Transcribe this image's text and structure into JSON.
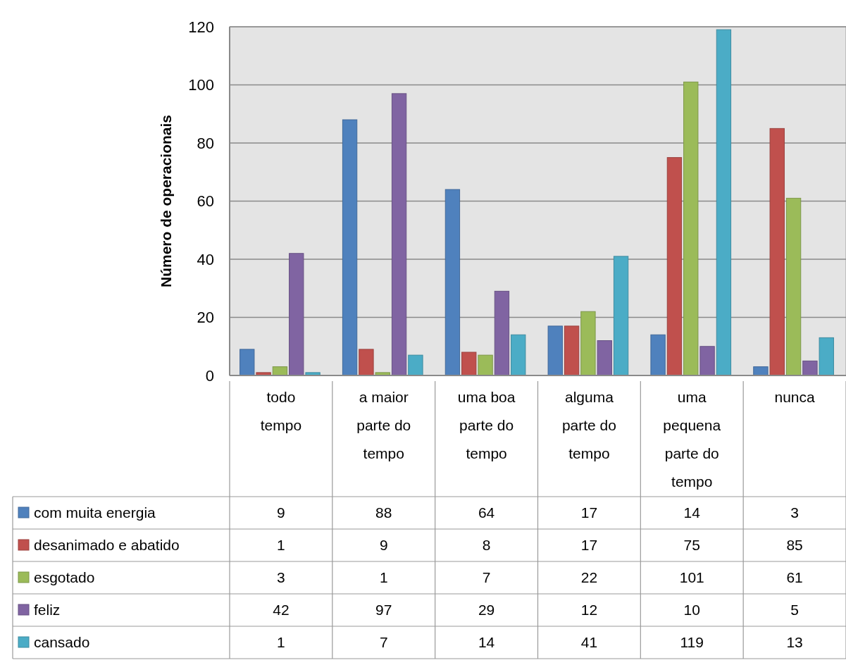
{
  "chart_data": {
    "type": "bar",
    "ylabel": "Número de operacionais",
    "categories": [
      "todo tempo",
      "a maior parte do tempo",
      "uma boa parte do tempo",
      "alguma parte do tempo",
      "uma pequena parte do tempo",
      "nunca"
    ],
    "series": [
      {
        "name": "com muita energia",
        "color": "#4f81bd",
        "values": [
          9,
          88,
          64,
          17,
          14,
          3
        ]
      },
      {
        "name": "desanimado e abatido",
        "color": "#c0504d",
        "values": [
          1,
          9,
          8,
          17,
          75,
          85
        ]
      },
      {
        "name": "esgotado",
        "color": "#9bbb59",
        "values": [
          3,
          1,
          7,
          22,
          101,
          61
        ]
      },
      {
        "name": "feliz",
        "color": "#8064a2",
        "values": [
          42,
          97,
          29,
          12,
          10,
          5
        ]
      },
      {
        "name": "cansado",
        "color": "#4bacc6",
        "values": [
          1,
          7,
          14,
          41,
          119,
          13
        ]
      }
    ],
    "ylim": [
      0,
      120
    ],
    "yticks": [
      0,
      20,
      40,
      60,
      80,
      100,
      120
    ],
    "grid": "y",
    "data_labels": true,
    "legend": "bottom"
  }
}
